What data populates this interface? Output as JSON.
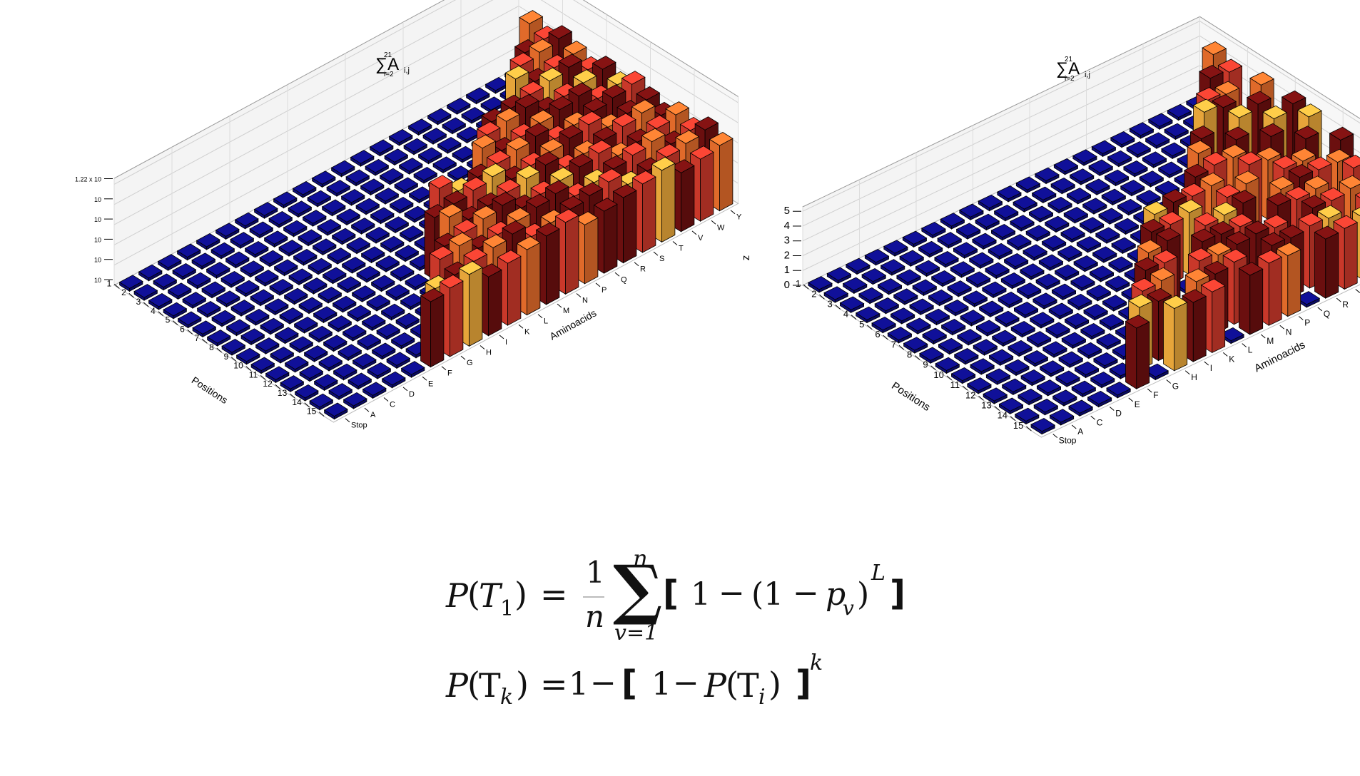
{
  "charts": {
    "left": {
      "title": "∑A",
      "title_sub": "i=2",
      "title_sup": "21",
      "title_idx": "i,j",
      "ylabel": "",
      "xlabel": "Positions",
      "zlabel": "Aminoacids",
      "ytick_labels": [
        "1.22 x 10",
        "10",
        "10",
        "10",
        "10",
        "10"
      ]
    },
    "right": {
      "title": "∑A",
      "title_sub": "i=2",
      "title_sup": "21",
      "title_idx": "i,j",
      "ylabel": "z",
      "xlabel": "Positions",
      "zlabel": "Aminoacids",
      "ytick_labels": [
        "5",
        "4",
        "3",
        "2",
        "1",
        "0"
      ]
    }
  },
  "chart_data": [
    {
      "type": "bar3d",
      "xlabel": "Positions",
      "zlabel": "Aminoacids",
      "yscale": "log",
      "positions": [
        "1",
        "2",
        "3",
        "4",
        "5",
        "6",
        "7",
        "8",
        "9",
        "10",
        "11",
        "12",
        "13",
        "14",
        "15"
      ],
      "aminoacids": [
        "Stop",
        "A",
        "C",
        "D",
        "E",
        "F",
        "G",
        "H",
        "I",
        "K",
        "L",
        "M",
        "N",
        "P",
        "Q",
        "R",
        "S",
        "T",
        "V",
        "W",
        "Y"
      ],
      "values": [
        [
          0.05,
          0.05,
          0.05,
          0.05,
          0.05,
          0.05,
          0.05,
          0.05,
          0.05,
          0.05,
          0.05,
          0.05,
          0.05,
          0.05,
          0.05,
          0.05,
          0.05,
          0.05,
          0.05,
          0.05,
          0.05
        ],
        [
          0.05,
          0.05,
          0.05,
          0.05,
          0.05,
          0.05,
          0.05,
          0.05,
          0.05,
          0.05,
          0.05,
          0.05,
          0.05,
          0.05,
          0.05,
          0.05,
          0.05,
          0.05,
          0.05,
          0.05,
          0.85
        ],
        [
          0.05,
          0.05,
          0.05,
          0.05,
          0.05,
          0.05,
          0.05,
          0.05,
          0.05,
          0.05,
          0.05,
          0.05,
          0.05,
          0.05,
          0.05,
          0.05,
          0.05,
          0.05,
          0.05,
          0.9,
          0.9
        ],
        [
          0.05,
          0.05,
          0.05,
          0.05,
          0.05,
          0.05,
          0.05,
          0.05,
          0.05,
          0.05,
          0.05,
          0.05,
          0.05,
          0.05,
          0.05,
          0.05,
          0.05,
          0.05,
          0.9,
          0.9,
          0.9
        ],
        [
          0.05,
          0.05,
          0.05,
          0.05,
          0.05,
          0.05,
          0.05,
          0.05,
          0.05,
          0.05,
          0.05,
          0.05,
          0.05,
          0.05,
          0.05,
          0.05,
          0.05,
          0.9,
          0.9,
          0.9,
          0.9
        ],
        [
          0.05,
          0.05,
          0.05,
          0.05,
          0.05,
          0.05,
          0.05,
          0.05,
          0.05,
          0.05,
          0.05,
          0.05,
          0.05,
          0.05,
          0.05,
          0.9,
          0.9,
          0.9,
          0.9,
          0.9,
          0.9
        ],
        [
          0.05,
          0.05,
          0.05,
          0.05,
          0.05,
          0.05,
          0.05,
          0.05,
          0.05,
          0.05,
          0.05,
          0.05,
          0.05,
          0.05,
          0.9,
          0.9,
          0.9,
          0.9,
          0.9,
          0.9,
          0.9
        ],
        [
          0.05,
          0.05,
          0.05,
          0.05,
          0.05,
          0.05,
          0.05,
          0.05,
          0.05,
          0.05,
          0.05,
          0.05,
          0.05,
          0.9,
          0.9,
          0.9,
          0.9,
          0.9,
          0.9,
          0.9,
          0.9
        ],
        [
          0.05,
          0.05,
          0.05,
          0.05,
          0.05,
          0.05,
          0.05,
          0.05,
          0.05,
          0.05,
          0.9,
          0.9,
          0.9,
          0.9,
          0.9,
          0.9,
          0.9,
          0.9,
          0.9,
          0.9,
          0.9
        ],
        [
          0.05,
          0.05,
          0.05,
          0.05,
          0.05,
          0.05,
          0.05,
          0.05,
          0.05,
          0.9,
          0.9,
          0.9,
          0.9,
          0.9,
          0.9,
          0.9,
          0.9,
          0.9,
          0.9,
          0.9,
          0.9
        ],
        [
          0.05,
          0.05,
          0.05,
          0.05,
          0.05,
          0.05,
          0.05,
          0.05,
          0.05,
          0.9,
          0.9,
          0.9,
          0.9,
          0.9,
          0.9,
          0.9,
          0.9,
          0.9,
          0.9,
          0.9,
          0.9
        ],
        [
          0.05,
          0.05,
          0.05,
          0.05,
          0.05,
          0.05,
          0.05,
          0.05,
          0.9,
          0.9,
          0.9,
          0.9,
          0.9,
          0.9,
          0.9,
          0.9,
          0.9,
          0.9,
          0.9,
          0.9,
          0.9
        ],
        [
          0.05,
          0.05,
          0.05,
          0.05,
          0.05,
          0.05,
          0.05,
          0.9,
          0.9,
          0.9,
          0.9,
          0.9,
          0.9,
          0.9,
          0.9,
          0.9,
          0.9,
          0.9,
          0.9,
          0.9,
          0.9
        ],
        [
          0.05,
          0.05,
          0.05,
          0.05,
          0.05,
          0.05,
          0.9,
          0.9,
          0.9,
          0.9,
          0.9,
          0.9,
          0.9,
          0.9,
          0.9,
          0.9,
          0.9,
          0.9,
          0.9,
          0.9,
          0.9
        ],
        [
          0.05,
          0.05,
          0.05,
          0.05,
          0.05,
          0.9,
          0.9,
          0.9,
          0.9,
          0.9,
          0.9,
          0.9,
          0.9,
          0.9,
          0.9,
          0.9,
          0.9,
          0.9,
          0.9,
          0.9,
          0.9
        ]
      ],
      "colors": {
        "low": "#0d0d7a",
        "dark": "#6b0f0f",
        "mid": "#c9382a",
        "light": "#e06a2a",
        "pale": "#e6a53a"
      }
    },
    {
      "type": "bar3d",
      "xlabel": "Positions",
      "zlabel": "Aminoacids",
      "ylabel": "z",
      "ylim": [
        0,
        5
      ],
      "positions": [
        "1",
        "2",
        "3",
        "4",
        "5",
        "6",
        "7",
        "8",
        "9",
        "10",
        "11",
        "12",
        "13",
        "14",
        "15"
      ],
      "aminoacids": [
        "Stop",
        "A",
        "C",
        "D",
        "E",
        "F",
        "G",
        "H",
        "I",
        "K",
        "L",
        "M",
        "N",
        "P",
        "Q",
        "R",
        "S",
        "T",
        "V",
        "W",
        "Y"
      ],
      "values": [
        [
          0.1,
          0.1,
          0.1,
          0.1,
          0.1,
          0.1,
          0.1,
          0.1,
          0.1,
          0.1,
          0.1,
          0.1,
          0.1,
          0.1,
          0.1,
          0.1,
          0.1,
          0.1,
          0.1,
          0.1,
          0.1
        ],
        [
          0.1,
          0.1,
          0.1,
          0.1,
          0.1,
          0.1,
          0.1,
          0.1,
          0.1,
          0.1,
          0.1,
          0.1,
          0.1,
          0.1,
          0.1,
          0.1,
          0.1,
          0.1,
          0.1,
          0.1,
          4.5
        ],
        [
          0.1,
          0.1,
          0.1,
          0.1,
          0.1,
          0.1,
          0.1,
          0.1,
          0.1,
          0.1,
          0.1,
          0.1,
          0.1,
          0.1,
          0.1,
          0.1,
          0.1,
          0.1,
          0.1,
          4.2,
          4.0
        ],
        [
          0.1,
          0.1,
          0.1,
          0.1,
          0.1,
          0.1,
          0.1,
          0.1,
          0.1,
          0.1,
          0.1,
          0.1,
          0.1,
          0.1,
          0.1,
          0.1,
          0.1,
          0.1,
          4.0,
          3.8,
          0.1
        ],
        [
          0.1,
          0.1,
          0.1,
          0.1,
          0.1,
          0.1,
          0.1,
          0.1,
          0.1,
          0.1,
          0.1,
          0.1,
          0.1,
          0.1,
          0.1,
          0.1,
          0.1,
          4.5,
          4.2,
          0.1,
          4.5
        ],
        [
          0.1,
          0.1,
          0.1,
          0.1,
          0.1,
          0.1,
          0.1,
          0.1,
          0.1,
          0.1,
          0.1,
          0.1,
          0.1,
          0.1,
          0.1,
          0.1,
          4.0,
          0.1,
          4.2,
          4.5,
          0.1
        ],
        [
          0.1,
          0.1,
          0.1,
          0.1,
          0.1,
          0.1,
          0.1,
          0.1,
          0.1,
          0.1,
          0.1,
          0.1,
          0.1,
          0.1,
          0.1,
          4.3,
          0.1,
          4.0,
          0.1,
          4.2,
          4.6
        ],
        [
          0.1,
          0.1,
          0.1,
          0.1,
          0.1,
          0.1,
          0.1,
          0.1,
          0.1,
          0.1,
          0.1,
          0.1,
          0.1,
          0.1,
          4.0,
          4.2,
          4.1,
          0.1,
          4.3,
          0.1,
          4.4
        ],
        [
          0.1,
          0.1,
          0.1,
          0.1,
          0.1,
          0.1,
          0.1,
          0.1,
          0.1,
          0.1,
          0.1,
          4.0,
          4.2,
          4.0,
          4.1,
          0.1,
          4.3,
          4.0,
          0.1,
          4.2,
          0.1
        ],
        [
          0.1,
          0.1,
          0.1,
          0.1,
          0.1,
          0.1,
          0.1,
          0.1,
          0.1,
          0.1,
          4.1,
          4.0,
          4.2,
          0.1,
          4.0,
          4.3,
          0.1,
          4.1,
          4.0,
          0.1,
          4.2
        ],
        [
          0.1,
          0.1,
          0.1,
          0.1,
          0.1,
          0.1,
          0.1,
          0.1,
          0.1,
          4.0,
          4.2,
          0.1,
          4.0,
          4.1,
          4.3,
          0.1,
          4.0,
          4.2,
          4.1,
          4.0,
          0.1
        ],
        [
          0.1,
          0.1,
          0.1,
          0.1,
          0.1,
          0.1,
          0.1,
          0.1,
          4.1,
          4.0,
          0.1,
          4.2,
          4.1,
          4.0,
          0.1,
          4.2,
          4.0,
          4.1,
          0.1,
          4.3,
          4.0
        ],
        [
          0.1,
          0.1,
          0.1,
          0.1,
          0.1,
          0.1,
          0.1,
          4.0,
          4.1,
          0.1,
          4.2,
          4.0,
          4.1,
          4.2,
          4.0,
          0.1,
          4.1,
          4.0,
          4.2,
          0.1,
          4.1
        ],
        [
          0.1,
          0.1,
          0.1,
          0.1,
          0.1,
          0.1,
          4.2,
          4.0,
          0.1,
          4.1,
          4.0,
          4.2,
          0.1,
          4.1,
          4.0,
          4.2,
          4.1,
          0.1,
          4.0,
          4.1,
          0.1
        ],
        [
          0.1,
          0.1,
          0.1,
          0.1,
          0.1,
          4.1,
          0.1,
          4.2,
          4.0,
          4.1,
          0.1,
          4.0,
          4.2,
          4.1,
          0.1,
          4.0,
          4.1,
          4.2,
          4.0,
          0.1,
          4.1
        ]
      ],
      "colors": {
        "low": "#0d0d7a",
        "dark": "#6b0f0f",
        "mid": "#c9382a",
        "light": "#e06a2a",
        "pale": "#e6a53a"
      }
    }
  ],
  "equations": {
    "eq1": {
      "lhs_P": "P",
      "lhs_open": "(",
      "lhs_T": "T",
      "lhs_sub": "1",
      "lhs_close": ")",
      "eq": "=",
      "frac_num": "1",
      "frac_den": "n",
      "sum_sym": "∑",
      "sum_top": "n",
      "sum_bottom": "v=1",
      "lbr": "[",
      "one": "1",
      "minus": "−",
      "paren_open": "(1",
      "minus2": "−",
      "p": "p",
      "p_sub": "v",
      "paren_close": ")",
      "sup_L": "L",
      "rbr": "]"
    },
    "eq2": {
      "lhs_P": "P",
      "lhs_open": "(",
      "lhs_T": "T",
      "lhs_sub": "k",
      "lhs_close": ")",
      "eq": "=",
      "one": "1",
      "minus": "−",
      "lbr": "[",
      "one2": "1",
      "minus2": "−",
      "P2": "P",
      "open2": "(",
      "T2": "T",
      "sub2": "i",
      "close2": ")",
      "rbr": "]",
      "sup_k": "k"
    }
  }
}
